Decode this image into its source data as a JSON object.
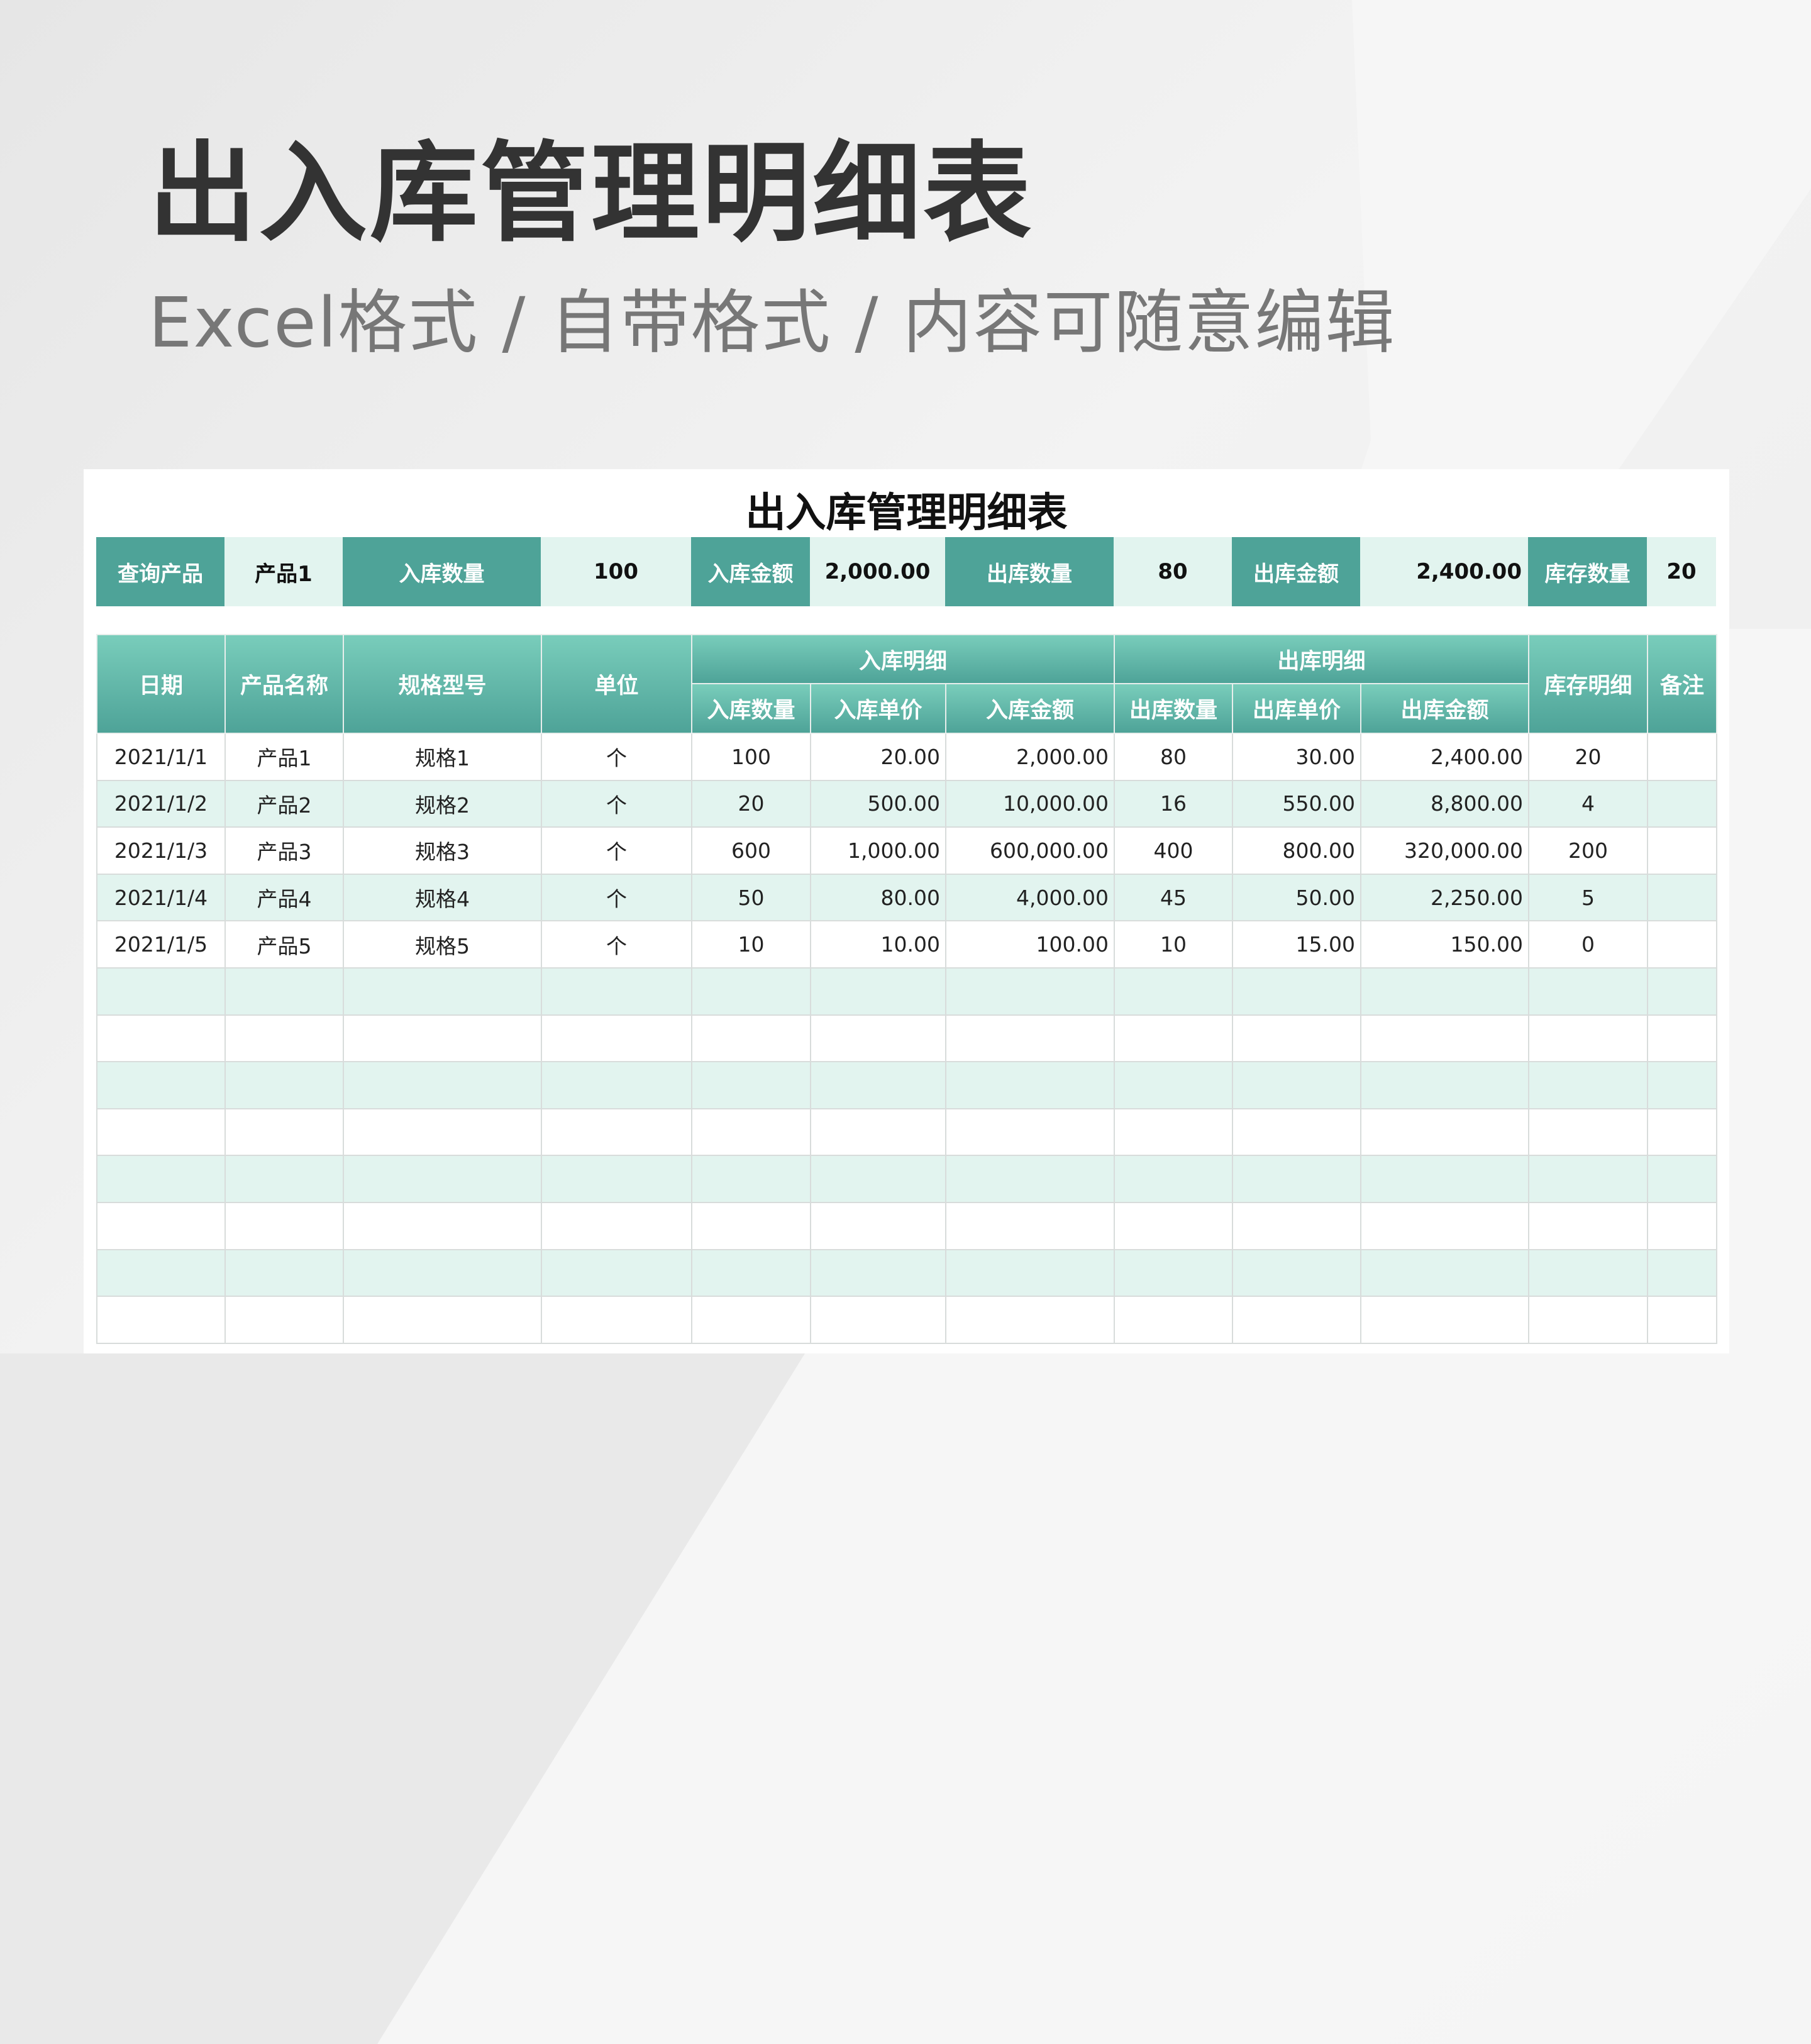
{
  "title": "出入库管理明细表",
  "subtitle": "Excel格式 / 自带格式 / 内容可随意编辑",
  "sheet_title": "出入库管理明细表",
  "colors": {
    "header": "#4ea398",
    "header_light": "#79cdbb",
    "row_alt": "#e2f4ef"
  },
  "query": {
    "product_label": "查询产品",
    "product_value": "产品1",
    "in_qty_label": "入库数量",
    "in_qty": "100",
    "in_amt_label": "入库金额",
    "in_amt": "2,000.00",
    "out_qty_label": "出库数量",
    "out_qty": "80",
    "out_amt_label": "出库金额",
    "out_amt": "2,400.00",
    "stock_label": "库存数量",
    "stock": "20"
  },
  "headers": {
    "date": "日期",
    "name": "产品名称",
    "spec": "规格型号",
    "unit": "单位",
    "in_group": "入库明细",
    "out_group": "出库明细",
    "stock": "库存明细",
    "note": "备注",
    "in_qty": "入库数量",
    "in_price": "入库单价",
    "in_amt": "入库金额",
    "out_qty": "出库数量",
    "out_price": "出库单价",
    "out_amt": "出库金额"
  },
  "rows": [
    [
      "2021/1/1",
      "产品1",
      "规格1",
      "个",
      "100",
      "20.00",
      "2,000.00",
      "80",
      "30.00",
      "2,400.00",
      "20",
      ""
    ],
    [
      "2021/1/2",
      "产品2",
      "规格2",
      "个",
      "20",
      "500.00",
      "10,000.00",
      "16",
      "550.00",
      "8,800.00",
      "4",
      ""
    ],
    [
      "2021/1/3",
      "产品3",
      "规格3",
      "个",
      "600",
      "1,000.00",
      "600,000.00",
      "400",
      "800.00",
      "320,000.00",
      "200",
      ""
    ],
    [
      "2021/1/4",
      "产品4",
      "规格4",
      "个",
      "50",
      "80.00",
      "4,000.00",
      "45",
      "50.00",
      "2,250.00",
      "5",
      ""
    ],
    [
      "2021/1/5",
      "产品5",
      "规格5",
      "个",
      "10",
      "10.00",
      "100.00",
      "10",
      "15.00",
      "150.00",
      "0",
      ""
    ]
  ]
}
